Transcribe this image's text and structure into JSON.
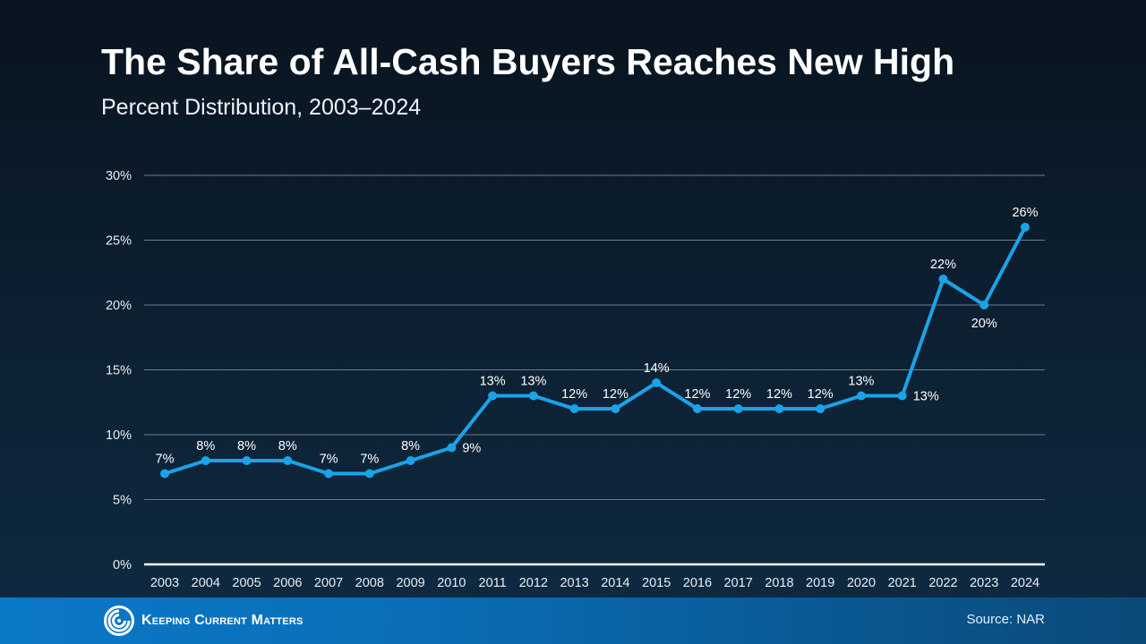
{
  "header": {
    "title": "The Share of All-Cash Buyers Reaches New High",
    "subtitle": "Percent Distribution, 2003–2024"
  },
  "footer": {
    "brand": "Keeping Current Matters",
    "brand_icon": "swirl-logo-icon",
    "source": "Source: NAR"
  },
  "colors": {
    "line": "#1aa3e8",
    "gridline": "#6b7d8c",
    "baseline": "#ffffff",
    "text": "#ffffff",
    "footer_blue": "#0b78c8"
  },
  "chart_data": {
    "type": "line",
    "title": "The Share of All-Cash Buyers Reaches New High",
    "subtitle": "Percent Distribution, 2003–2024",
    "xlabel": "",
    "ylabel": "",
    "x": [
      "2003",
      "2004",
      "2005",
      "2006",
      "2007",
      "2008",
      "2009",
      "2010",
      "2011",
      "2012",
      "2013",
      "2014",
      "2015",
      "2016",
      "2017",
      "2018",
      "2019",
      "2020",
      "2021",
      "2022",
      "2023",
      "2024"
    ],
    "series": [
      {
        "name": "All-Cash Buyers Share",
        "values": [
          7,
          8,
          8,
          8,
          7,
          7,
          8,
          9,
          13,
          13,
          12,
          12,
          14,
          12,
          12,
          12,
          12,
          13,
          13,
          22,
          20,
          26
        ],
        "labels": [
          "7%",
          "8%",
          "8%",
          "8%",
          "7%",
          "7%",
          "8%",
          "9%",
          "13%",
          "13%",
          "12%",
          "12%",
          "14%",
          "12%",
          "12%",
          "12%",
          "12%",
          "13%",
          "13%",
          "22%",
          "20%",
          "26%"
        ],
        "label_positions": [
          "above",
          "above",
          "above",
          "above",
          "above",
          "above",
          "above",
          "right",
          "above",
          "above",
          "above",
          "above",
          "above",
          "above",
          "above",
          "above",
          "above",
          "above",
          "right",
          "above",
          "below",
          "above"
        ]
      }
    ],
    "ylim": [
      0,
      30
    ],
    "yticks": [
      0,
      5,
      10,
      15,
      20,
      25,
      30
    ],
    "ytick_labels": [
      "0%",
      "5%",
      "10%",
      "15%",
      "20%",
      "25%",
      "30%"
    ],
    "grid": true,
    "legend": "none"
  }
}
